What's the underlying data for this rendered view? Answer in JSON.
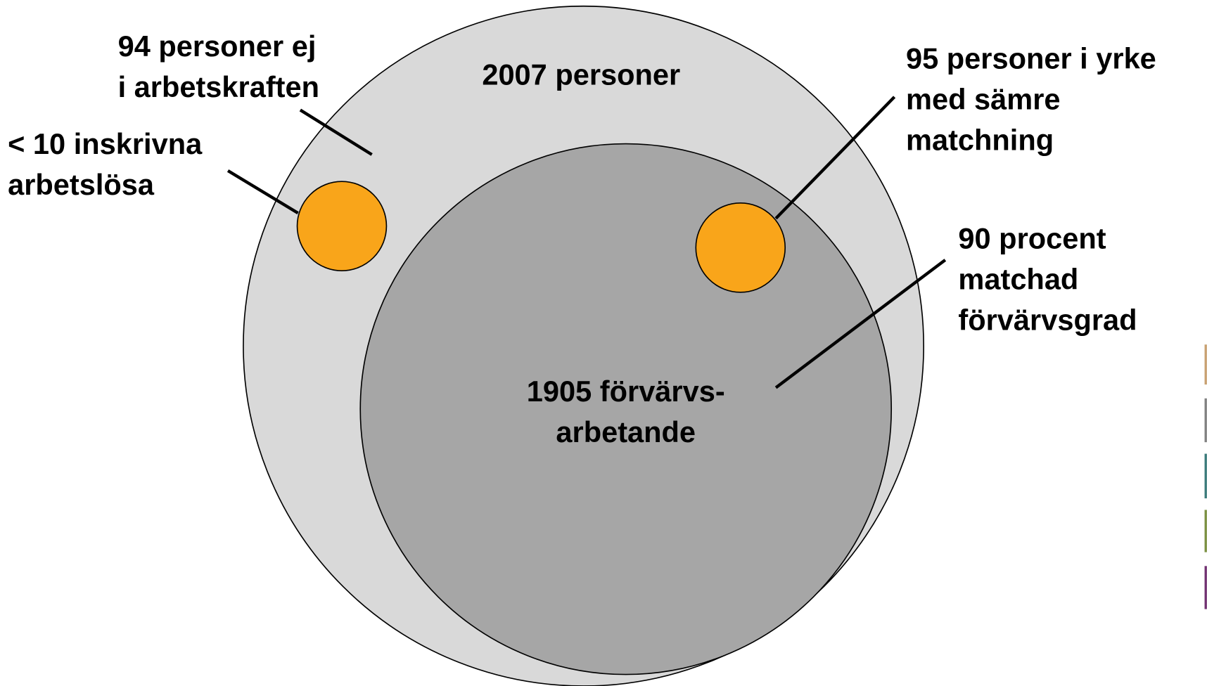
{
  "total": {
    "label": "2007 personer"
  },
  "employed": {
    "lines": [
      "1905 förvärvs-",
      "arbetande"
    ]
  },
  "annotations": [
    {
      "lines": [
        "94 personer ej",
        "i arbetskraften"
      ]
    },
    {
      "lines": [
        "< 10 inskrivna",
        "arbetslösa"
      ]
    },
    {
      "lines": [
        "95 personer i yrke",
        "med sämre",
        "matchning"
      ]
    },
    {
      "lines": [
        "90 procent",
        "matchad",
        "förvärvsgrad"
      ]
    }
  ]
}
